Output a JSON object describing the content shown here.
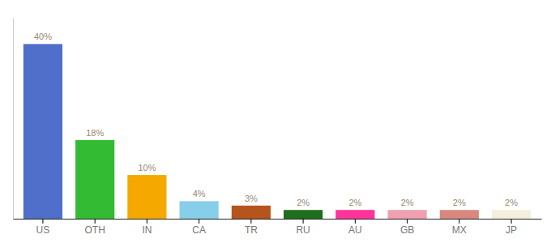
{
  "chart_data": {
    "type": "bar",
    "categories": [
      "US",
      "OTH",
      "IN",
      "CA",
      "TR",
      "RU",
      "AU",
      "GB",
      "MX",
      "JP"
    ],
    "values": [
      40,
      18,
      10,
      4,
      3,
      2,
      2,
      2,
      2,
      2
    ],
    "value_labels": [
      "40%",
      "18%",
      "10%",
      "4%",
      "3%",
      "2%",
      "2%",
      "2%",
      "2%",
      "2%"
    ],
    "colors": [
      "#4f6fca",
      "#33bb33",
      "#f5a800",
      "#87ceeb",
      "#b5541c",
      "#1e6e1e",
      "#ff3399",
      "#f0a0b0",
      "#d98880",
      "#f5f0dc"
    ],
    "ylim": [
      0,
      46
    ],
    "data_labels": true,
    "tick_labels": "x",
    "grid": false
  }
}
